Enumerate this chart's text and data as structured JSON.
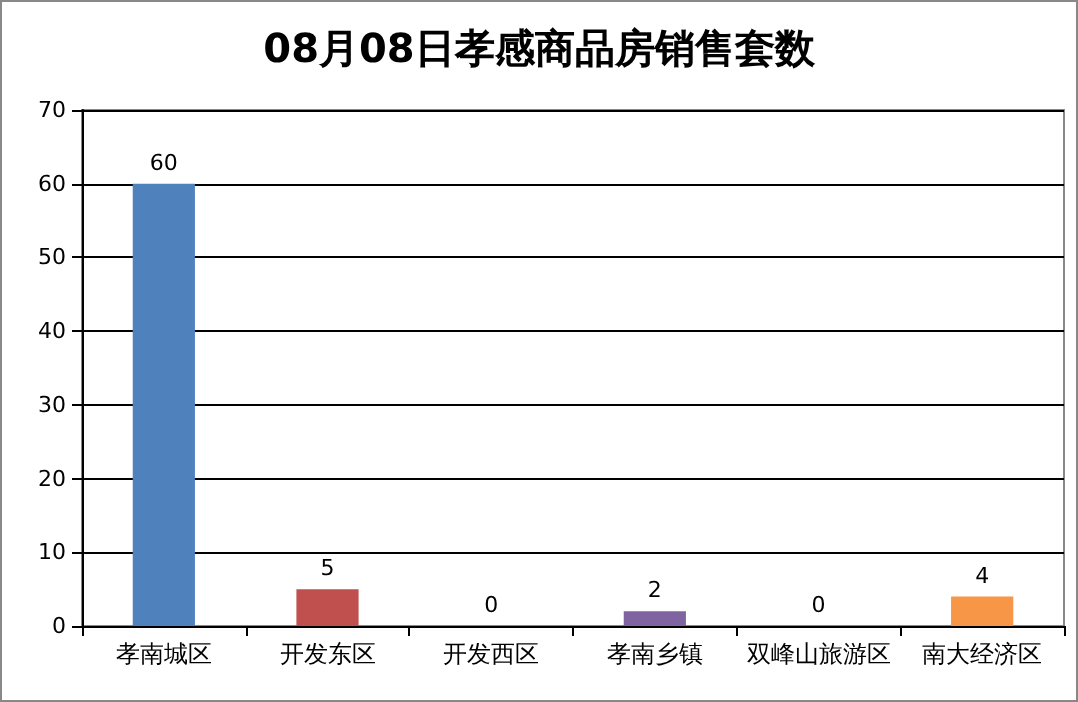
{
  "chart_data": {
    "type": "bar",
    "title": "08月08日孝感商品房销售套数",
    "categories": [
      "孝南城区",
      "开发东区",
      "开发西区",
      "孝南乡镇",
      "双峰山旅游区",
      "南大经济区"
    ],
    "values": [
      60,
      5,
      0,
      2,
      0,
      4
    ],
    "colors": [
      "#4f81bd",
      "#c0504d",
      "#9bbb59",
      "#8064a2",
      "#4bacc6",
      "#f79646"
    ],
    "ylim": [
      0,
      70
    ],
    "yticks": [
      0,
      10,
      20,
      30,
      40,
      50,
      60,
      70
    ],
    "grid": "y",
    "data_labels": true
  }
}
